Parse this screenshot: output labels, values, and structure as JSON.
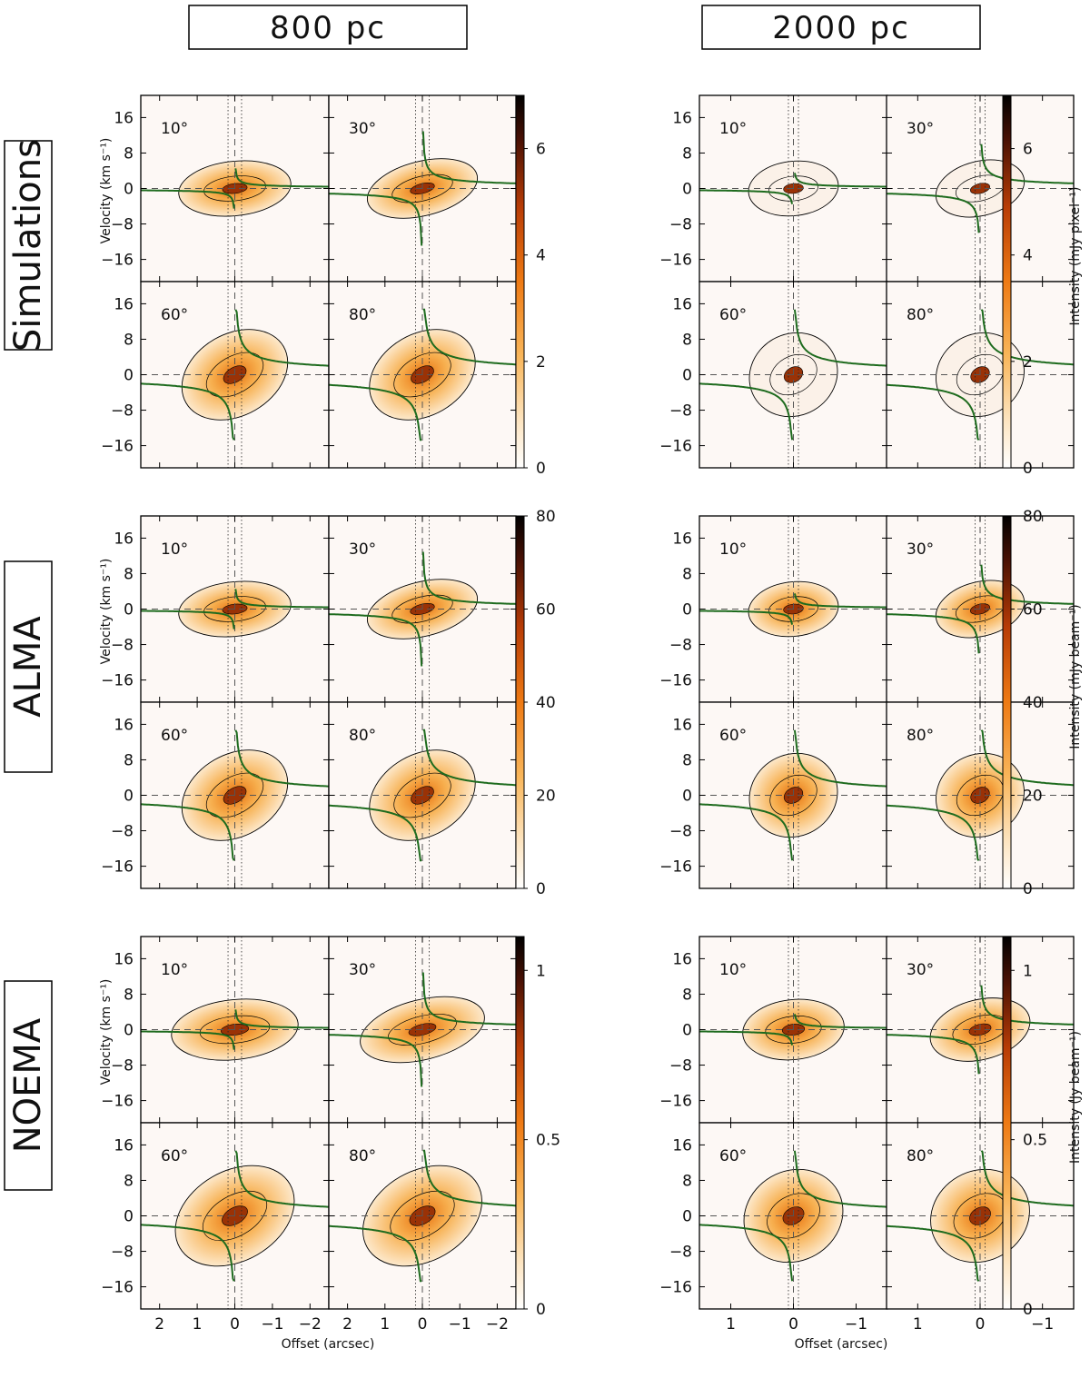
{
  "column_labels": [
    "800 pc",
    "2000 pc"
  ],
  "row_labels": [
    "Simulations",
    "ALMA",
    "NOEMA"
  ],
  "angle_labels": [
    "10°",
    "30°",
    "60°",
    "80°"
  ],
  "y_axis_label": "Velocity (km s⁻¹)",
  "x_axis_label": "Offset (arcsec)",
  "colorbar_labels": [
    "Intensity (mJy pixel⁻¹)",
    "Intensity (mJy beam⁻¹)",
    "Intensity (Jy beam⁻¹)"
  ],
  "colors": {
    "colormap": [
      "#ffffff",
      "#fde6c4",
      "#f9b65a",
      "#ee7a14",
      "#b83c06",
      "#4a1104",
      "#000000"
    ],
    "model_curve": "#1e6b1e",
    "contour": "#000000",
    "dashed": "#555555"
  },
  "chart_data": {
    "type": "heatmap",
    "description_axes": "Position-velocity diagrams",
    "ylim": [
      -21,
      21
    ],
    "yticks": [
      -16,
      -8,
      0,
      8,
      16
    ],
    "ytick_labels": [
      "−16",
      "−8",
      "0",
      "8",
      "16"
    ],
    "columns": [
      {
        "distance": "800 pc",
        "xlim": [
          2.5,
          -2.5
        ],
        "xticks": [
          2,
          1,
          0,
          -1,
          -2
        ],
        "xtick_labels": [
          "2",
          "1",
          "0",
          "−1",
          "−2"
        ],
        "dotted_offsets": [
          0.18,
          -0.18
        ]
      },
      {
        "distance": "2000 pc",
        "xlim": [
          1.5,
          -1.5
        ],
        "xticks": [
          1,
          0,
          -1
        ],
        "xtick_labels": [
          "1",
          "0",
          "−1"
        ],
        "dotted_offsets": [
          0.08,
          -0.08
        ]
      }
    ],
    "rows": [
      {
        "name": "Simulations",
        "cbar_range": [
          0,
          7
        ],
        "cbar_ticks": [
          0,
          2,
          4,
          6
        ],
        "cbar_tick_labels": [
          "0",
          "2",
          "4",
          "6"
        ],
        "unit": "mJy pixel⁻¹"
      },
      {
        "name": "ALMA",
        "cbar_range": [
          0,
          80
        ],
        "cbar_ticks": [
          0,
          20,
          40,
          60,
          80
        ],
        "cbar_tick_labels": [
          "0",
          "20",
          "40",
          "60",
          "80"
        ],
        "unit": "mJy beam⁻¹"
      },
      {
        "name": "NOEMA",
        "cbar_range": [
          0,
          1.1
        ],
        "cbar_ticks": [
          0,
          0.5,
          1
        ],
        "cbar_tick_labels": [
          "0",
          "0.5",
          "1"
        ],
        "unit": "Jy beam⁻¹"
      }
    ],
    "inclinations_deg": [
      10,
      30,
      60,
      80
    ],
    "model_curve_amplitude_kms": {
      "10": 0.7,
      "30": 2.0,
      "60": 3.5,
      "80": 4.0
    }
  }
}
